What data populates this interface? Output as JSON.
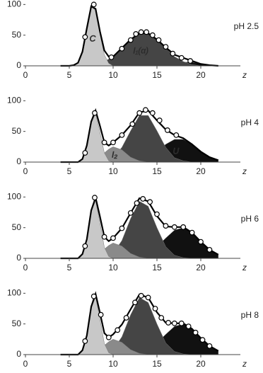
{
  "chart_data": [
    {
      "type": "area",
      "title": "pH 2.5",
      "xlabel": "z",
      "x": [
        4,
        5,
        5.5,
        6,
        6.5,
        7,
        7.5,
        8,
        8.5,
        9,
        9.5,
        10,
        11,
        12,
        13,
        14,
        15,
        16,
        17,
        18,
        19,
        20,
        21,
        22
      ],
      "series": [
        {
          "color": "#111111",
          "values": [
            0,
            0,
            0,
            0,
            0,
            0,
            0,
            0,
            0,
            0,
            0,
            0,
            0,
            0,
            0,
            0,
            0,
            1,
            3,
            6,
            6,
            3,
            1,
            0
          ]
        },
        {
          "name": "I₁(α)",
          "color": "#454545",
          "values": [
            0,
            0,
            0,
            0,
            0,
            0,
            1,
            2,
            4,
            7,
            11,
            15,
            29,
            43,
            53,
            53,
            43,
            29,
            15,
            7,
            2,
            0,
            0,
            0
          ]
        },
        {
          "name": "C",
          "color": "#c8c8c8",
          "values": [
            0,
            0,
            1,
            5,
            23,
            61,
            96,
            91,
            52,
            18,
            4,
            0,
            0,
            0,
            0,
            0,
            0,
            0,
            0,
            0,
            0,
            0,
            0,
            0
          ]
        }
      ],
      "fit": [
        0,
        0,
        1,
        5,
        23,
        61,
        97,
        93,
        56,
        25,
        15,
        15,
        29,
        43,
        53,
        53,
        43,
        30,
        18,
        13,
        8,
        3,
        1,
        0
      ],
      "points": {
        "x": [
          6.8,
          7.8,
          9.8,
          11,
          12,
          12.6,
          13.2,
          13.8,
          14.5,
          15.2,
          16,
          16.8,
          17.8,
          18.8
        ],
        "y": [
          47,
          100,
          14,
          28,
          42,
          52,
          55,
          55,
          50,
          42,
          31,
          20,
          13,
          8
        ]
      },
      "xlim": [
        0,
        25
      ],
      "ylim": [
        0,
        105
      ],
      "xticks": [
        0,
        5,
        10,
        15,
        20
      ],
      "yticks": [
        0,
        50,
        100
      ]
    },
    {
      "type": "area",
      "title": "pH 4",
      "xlabel": "z",
      "x": [
        4,
        5,
        5.5,
        6,
        6.5,
        7,
        7.5,
        8,
        8.5,
        9,
        9.5,
        10,
        11,
        12,
        13,
        14,
        15,
        16,
        17,
        18,
        19,
        20,
        21,
        22
      ],
      "series": [
        {
          "name": "U",
          "color": "#111111",
          "values": [
            0,
            0,
            0,
            0,
            0,
            0,
            0,
            0,
            0,
            0,
            0,
            0,
            0,
            1,
            3,
            8,
            17,
            29,
            37,
            37,
            29,
            17,
            8,
            3
          ]
        },
        {
          "color": "#454545",
          "values": [
            0,
            0,
            0,
            0,
            0,
            0,
            0,
            0,
            1,
            2,
            4,
            7,
            24,
            51,
            76,
            76,
            51,
            24,
            7,
            2,
            0,
            0,
            0,
            0
          ]
        },
        {
          "name": "I₂",
          "color": "#8a8a8a",
          "values": [
            0,
            0,
            0,
            0,
            0,
            1,
            2,
            5,
            9,
            15,
            21,
            25,
            20,
            8,
            2,
            0,
            0,
            0,
            0,
            0,
            0,
            0,
            0,
            0
          ]
        },
        {
          "color": "#c8c8c8",
          "values": [
            0,
            0,
            0,
            0,
            5,
            26,
            64,
            79,
            49,
            15,
            2,
            0,
            0,
            0,
            0,
            0,
            0,
            0,
            0,
            0,
            0,
            0,
            0,
            0
          ]
        }
      ],
      "fit": [
        0,
        0,
        0,
        0,
        5,
        27,
        66,
        84,
        59,
        32,
        27,
        32,
        44,
        60,
        81,
        84,
        68,
        53,
        44,
        39,
        29,
        17,
        8,
        3
      ],
      "points": {
        "x": [
          6.8,
          7.9,
          9,
          10,
          11,
          12.2,
          13,
          13.7,
          14.5,
          15.3,
          16.2,
          17.2
        ],
        "y": [
          15,
          80,
          32,
          32,
          44,
          62,
          80,
          85,
          80,
          68,
          52,
          44
        ]
      },
      "xlim": [
        0,
        25
      ],
      "ylim": [
        0,
        105
      ],
      "xticks": [
        0,
        5,
        10,
        15,
        20
      ],
      "yticks": [
        0,
        50,
        100
      ]
    },
    {
      "type": "area",
      "title": "pH 6",
      "xlabel": "z",
      "x": [
        4,
        5,
        5.5,
        6,
        6.5,
        7,
        7.5,
        8,
        8.5,
        9,
        9.5,
        10,
        11,
        12,
        13,
        14,
        15,
        16,
        17,
        18,
        19,
        20,
        21,
        22
      ],
      "series": [
        {
          "color": "#111111",
          "values": [
            0,
            0,
            0,
            0,
            0,
            0,
            0,
            0,
            0,
            0,
            0,
            0,
            0,
            1,
            3,
            8,
            19,
            33,
            46,
            50,
            42,
            27,
            14,
            6
          ]
        },
        {
          "color": "#454545",
          "values": [
            0,
            0,
            0,
            0,
            0,
            0,
            0,
            0,
            1,
            2,
            4,
            8,
            29,
            65,
            93,
            85,
            50,
            19,
            5,
            1,
            0,
            0,
            0,
            0
          ]
        },
        {
          "color": "#8a8a8a",
          "values": [
            0,
            0,
            0,
            0,
            0,
            1,
            2,
            5,
            9,
            15,
            21,
            25,
            20,
            8,
            2,
            0,
            0,
            0,
            0,
            0,
            0,
            0,
            0,
            0
          ]
        },
        {
          "color": "#c8c8c8",
          "values": [
            0,
            0,
            0,
            0,
            7,
            30,
            76,
            94,
            58,
            18,
            3,
            0,
            0,
            0,
            0,
            0,
            0,
            0,
            0,
            0,
            0,
            0,
            0,
            0
          ]
        }
      ],
      "fit": [
        0,
        0,
        0,
        0,
        7,
        31,
        78,
        99,
        68,
        35,
        28,
        33,
        49,
        74,
        98,
        93,
        69,
        52,
        51,
        51,
        42,
        27,
        14,
        6
      ],
      "points": {
        "x": [
          6.8,
          7.9,
          9,
          10,
          11,
          12,
          12.7,
          13.4,
          14.2,
          15,
          16,
          17,
          18,
          19,
          20,
          21
        ],
        "y": [
          20,
          99,
          35,
          33,
          49,
          74,
          90,
          97,
          92,
          72,
          53,
          51,
          51,
          42,
          27,
          14
        ]
      },
      "xlim": [
        0,
        25
      ],
      "ylim": [
        0,
        105
      ],
      "xticks": [
        0,
        5,
        10,
        15,
        20
      ],
      "yticks": [
        0,
        50,
        100
      ]
    },
    {
      "type": "area",
      "title": "pH 8",
      "xlabel": "z",
      "x": [
        4,
        5,
        5.5,
        6,
        6.5,
        7,
        7.5,
        8,
        8.5,
        9,
        9.5,
        10,
        11,
        12,
        13,
        14,
        15,
        16,
        17,
        18,
        19,
        20,
        21,
        22
      ],
      "series": [
        {
          "color": "#111111",
          "values": [
            0,
            0,
            0,
            0,
            0,
            0,
            0,
            0,
            0,
            0,
            0,
            0,
            0,
            1,
            3,
            8,
            19,
            33,
            46,
            50,
            42,
            27,
            14,
            6
          ]
        },
        {
          "color": "#454545",
          "values": [
            0,
            0,
            0,
            0,
            0,
            0,
            0,
            0,
            1,
            2,
            4,
            8,
            29,
            65,
            93,
            85,
            50,
            19,
            5,
            1,
            0,
            0,
            0,
            0
          ]
        },
        {
          "color": "#8a8a8a",
          "values": [
            0,
            0,
            0,
            0,
            0,
            1,
            2,
            5,
            9,
            15,
            21,
            25,
            20,
            8,
            2,
            0,
            0,
            0,
            0,
            0,
            0,
            0,
            0,
            0
          ]
        },
        {
          "color": "#c8c8c8",
          "values": [
            0,
            0,
            0,
            0,
            7,
            30,
            76,
            94,
            58,
            18,
            3,
            0,
            0,
            0,
            0,
            0,
            0,
            0,
            0,
            0,
            0,
            0,
            0,
            0
          ]
        }
      ],
      "fit": [
        0,
        0,
        0,
        0,
        7,
        31,
        78,
        99,
        68,
        35,
        28,
        33,
        49,
        74,
        98,
        93,
        69,
        52,
        51,
        51,
        42,
        27,
        14,
        6
      ],
      "points": {
        "x": [
          6.8,
          7.8,
          8.6,
          9.5,
          10.5,
          11.5,
          12.5,
          13.2,
          14,
          14.8,
          15.5,
          16.3,
          17,
          17.8,
          18.6,
          19.4,
          20.2,
          21
        ],
        "y": [
          22,
          95,
          65,
          28,
          40,
          60,
          85,
          96,
          93,
          75,
          60,
          52,
          51,
          51,
          46,
          36,
          24,
          14
        ]
      },
      "xlim": [
        0,
        25
      ],
      "ylim": [
        0,
        105
      ],
      "xticks": [
        0,
        5,
        10,
        15,
        20
      ],
      "yticks": [
        0,
        50,
        100
      ]
    }
  ]
}
